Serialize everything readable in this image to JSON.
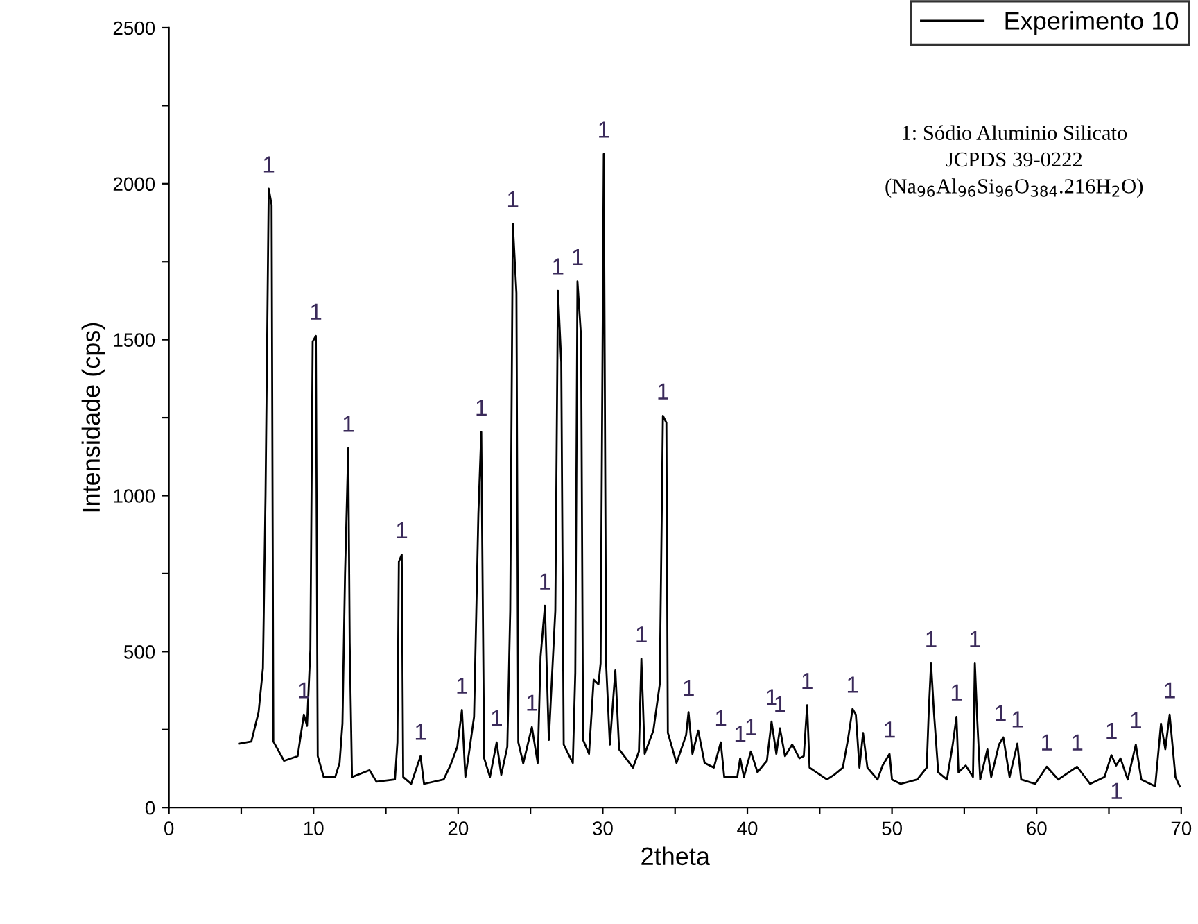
{
  "chart_data": {
    "type": "line",
    "xlabel": "2theta",
    "ylabel": "Intensidade (cps)",
    "xlim": [
      0,
      70
    ],
    "ylim": [
      0,
      2500
    ],
    "xticks": [
      0,
      {
        "value": 5,
        "label": null
      },
      10,
      {
        "value": 15,
        "label": null
      },
      20,
      {
        "value": 25,
        "label": null
      },
      30,
      {
        "value": 35,
        "label": null
      },
      40,
      {
        "value": 45,
        "label": null
      },
      50,
      {
        "value": 55,
        "label": null
      },
      60,
      {
        "value": 65,
        "label": null
      },
      70
    ],
    "yticks": [
      0,
      {
        "value": 250,
        "label": null
      },
      500,
      {
        "value": 750,
        "label": null
      },
      1000,
      {
        "value": 1250,
        "label": null
      },
      1500,
      {
        "value": 1750,
        "label": null
      },
      2000,
      {
        "value": 2250,
        "label": null
      },
      2500
    ],
    "grid": false,
    "legend": "top right",
    "marker": "none",
    "line_style": "solid",
    "series": [
      {
        "name": "Experimento 10",
        "color": "#000000",
        "x": [
          4.9,
          5.7,
          6.2,
          6.5,
          6.68,
          6.9,
          7.1,
          7.22,
          7.96,
          8.9,
          9.33,
          9.55,
          9.78,
          9.94,
          10.16,
          10.29,
          10.7,
          11.5,
          11.8,
          12.0,
          12.18,
          12.4,
          12.5,
          12.66,
          13.87,
          14.35,
          15.63,
          15.8,
          15.9,
          16.1,
          16.2,
          16.75,
          17.4,
          17.64,
          19.0,
          19.46,
          19.94,
          20.26,
          20.5,
          20.74,
          21.1,
          21.4,
          21.6,
          21.8,
          22.2,
          22.66,
          22.98,
          23.4,
          23.6,
          23.78,
          24.03,
          24.16,
          24.5,
          25.1,
          25.5,
          25.7,
          26.0,
          26.27,
          26.72,
          26.9,
          27.13,
          27.3,
          27.93,
          28.1,
          28.25,
          28.5,
          28.64,
          29.05,
          29.37,
          29.7,
          29.85,
          30.07,
          30.23,
          30.49,
          30.87,
          31.13,
          32.09,
          32.5,
          32.67,
          32.9,
          33.5,
          33.94,
          34.16,
          34.4,
          34.5,
          35.1,
          35.76,
          35.93,
          36.2,
          36.6,
          37.04,
          37.68,
          38.16,
          38.4,
          39.3,
          39.5,
          39.76,
          40.24,
          40.7,
          41.35,
          41.67,
          42.0,
          42.25,
          42.6,
          43.1,
          43.6,
          43.9,
          44.13,
          44.3,
          45.5,
          46.0,
          46.6,
          46.95,
          47.27,
          47.5,
          47.75,
          48.0,
          48.3,
          49.0,
          49.35,
          49.83,
          50.0,
          50.6,
          51.75,
          52.4,
          52.54,
          52.7,
          52.9,
          53.2,
          53.8,
          54.2,
          54.46,
          54.6,
          55.1,
          55.6,
          55.73,
          55.9,
          56.1,
          56.6,
          56.86,
          57.4,
          57.7,
          58.13,
          58.67,
          58.93,
          59.9,
          60.7,
          61.5,
          62.8,
          63.7,
          64.7,
          65.17,
          65.5,
          65.8,
          66.3,
          66.86,
          67.24,
          68.2,
          68.6,
          68.9,
          69.2,
          69.6,
          69.9
        ],
        "values": [
          205,
          212,
          306,
          447,
          1000,
          1984,
          1932,
          212,
          150,
          165,
          298,
          262,
          506,
          1494,
          1512,
          165,
          98,
          98,
          143,
          269,
          751,
          1152,
          529,
          98,
          120,
          83,
          90,
          209,
          788,
          811,
          98,
          76,
          165,
          76,
          90,
          135,
          195,
          313,
          98,
          172,
          291,
          944,
          1204,
          158,
          98,
          209,
          105,
          195,
          632,
          1872,
          1650,
          209,
          142,
          258,
          143,
          484,
          647,
          217,
          632,
          1657,
          1427,
          202,
          143,
          432,
          1687,
          1509,
          217,
          172,
          410,
          395,
          462,
          2095,
          462,
          202,
          440,
          187,
          128,
          180,
          477,
          172,
          247,
          395,
          1256,
          1234,
          240,
          143,
          232,
          306,
          172,
          247,
          143,
          128,
          209,
          98,
          98,
          158,
          98,
          180,
          113,
          150,
          276,
          172,
          254,
          165,
          202,
          158,
          165,
          328,
          128,
          90,
          105,
          128,
          217,
          316,
          298,
          128,
          239,
          128,
          90,
          135,
          172,
          90,
          76,
          90,
          128,
          306,
          462,
          306,
          113,
          90,
          202,
          291,
          113,
          135,
          98,
          462,
          276,
          90,
          187,
          98,
          202,
          225,
          98,
          205,
          90,
          76,
          131,
          90,
          131,
          76,
          98,
          168,
          135,
          158,
          90,
          202,
          90,
          68,
          269,
          187,
          298,
          98,
          68
        ]
      }
    ],
    "annotations": [
      {
        "text": "1",
        "x": 6.9,
        "y": 1984
      },
      {
        "text": "1",
        "x": 9.33,
        "y": 298
      },
      {
        "text": "1",
        "x": 10.16,
        "y": 1512
      },
      {
        "text": "1",
        "x": 12.4,
        "y": 1152
      },
      {
        "text": "1",
        "x": 16.1,
        "y": 811
      },
      {
        "text": "1",
        "x": 17.4,
        "y": 165
      },
      {
        "text": "1",
        "x": 20.26,
        "y": 313
      },
      {
        "text": "1",
        "x": 21.6,
        "y": 1204
      },
      {
        "text": "1",
        "x": 22.66,
        "y": 209
      },
      {
        "text": "1",
        "x": 23.78,
        "y": 1872
      },
      {
        "text": "1",
        "x": 25.1,
        "y": 258
      },
      {
        "text": "1",
        "x": 26.0,
        "y": 647
      },
      {
        "text": "1",
        "x": 26.9,
        "y": 1657
      },
      {
        "text": "1",
        "x": 28.25,
        "y": 1687
      },
      {
        "text": "1",
        "x": 30.07,
        "y": 2095
      },
      {
        "text": "1",
        "x": 32.67,
        "y": 477
      },
      {
        "text": "1",
        "x": 34.16,
        "y": 1256
      },
      {
        "text": "1",
        "x": 35.93,
        "y": 306
      },
      {
        "text": "1",
        "x": 38.16,
        "y": 209
      },
      {
        "text": "1",
        "x": 39.5,
        "y": 158
      },
      {
        "text": "1",
        "x": 40.24,
        "y": 180
      },
      {
        "text": "1",
        "x": 41.67,
        "y": 276
      },
      {
        "text": "1",
        "x": 42.25,
        "y": 254
      },
      {
        "text": "1",
        "x": 44.13,
        "y": 328
      },
      {
        "text": "1",
        "x": 47.27,
        "y": 316
      },
      {
        "text": "1",
        "x": 49.83,
        "y": 172
      },
      {
        "text": "1",
        "x": 52.7,
        "y": 462
      },
      {
        "text": "1",
        "x": 54.46,
        "y": 291
      },
      {
        "text": "1",
        "x": 55.73,
        "y": 462
      },
      {
        "text": "1",
        "x": 57.5,
        "y": 225
      },
      {
        "text": "1",
        "x": 58.67,
        "y": 205
      },
      {
        "text": "1",
        "x": 60.7,
        "y": 131
      },
      {
        "text": "1",
        "x": 62.8,
        "y": 131
      },
      {
        "text": "1",
        "x": 65.17,
        "y": 168
      },
      {
        "text": "1",
        "x": 66.86,
        "y": 202
      },
      {
        "text": "1",
        "x": 69.2,
        "y": 298
      },
      "1",
      "1: Sódio Aluminio Silicato\nJCPDS 39-0222\n(Na$_{96}$Al$_{96}$Si$_{96}$O$_{384}$.216H$_{2}$O)"
    ]
  }
}
